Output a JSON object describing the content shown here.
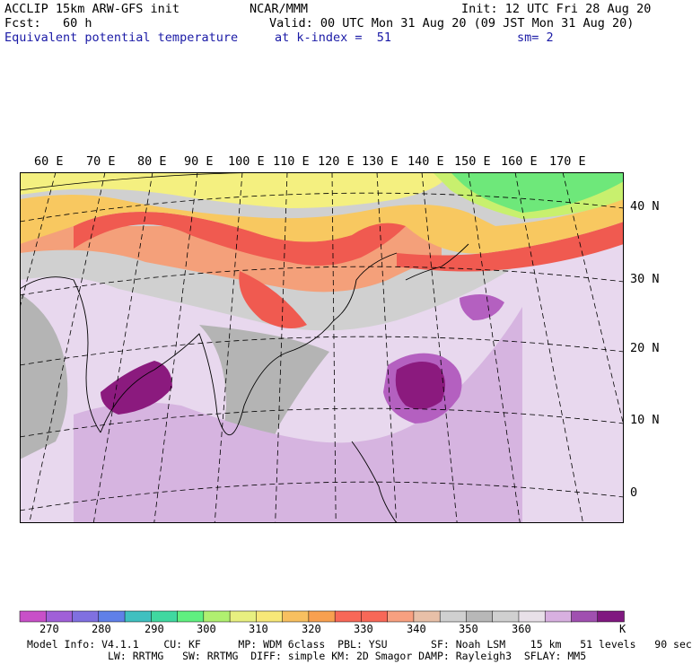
{
  "header": {
    "title_left": "ACCLIP 15km ARW-GFS init",
    "center": "NCAR/MMM",
    "init": "Init: 12 UTC Fri 28 Aug 20",
    "fcst": "Fcst:   60 h",
    "valid": "Valid: 00 UTC Mon 31 Aug 20 (09 JST Mon 31 Aug 20)",
    "field": "Equivalent potential temperature",
    "level": "at k-index =  51",
    "smooth": "sm= 2"
  },
  "map": {
    "lon_labels": [
      "60 E",
      "70 E",
      "80 E",
      "90 E",
      "100 E",
      "110 E",
      "120 E",
      "130 E",
      "140 E",
      "150 E",
      "160 E",
      "170 E"
    ],
    "lat_labels": [
      "40 N",
      "30 N",
      "20 N",
      "10 N",
      "0"
    ],
    "colors": {
      "magenta": "#8b1a7e",
      "violet": "#b460c0",
      "lilac": "#d6b4e0",
      "pale_lilac": "#e8d8ee",
      "gray_light": "#d0d0d0",
      "gray_dark": "#b4b4b4",
      "salmon": "#f4a07a",
      "red": "#f05a50",
      "orange": "#f8c860",
      "yellow": "#f4f080",
      "yellow_green": "#c8f06e",
      "green": "#6ee87a"
    }
  },
  "colorbar": {
    "ticks": [
      "270",
      "280",
      "290",
      "300",
      "310",
      "320",
      "330",
      "340",
      "350",
      "360",
      "K"
    ],
    "colors": [
      "#c850c8",
      "#a060d8",
      "#8070e0",
      "#6080e8",
      "#40c0c0",
      "#40d8a0",
      "#60f080",
      "#b0f070",
      "#e8f080",
      "#f8e878",
      "#f8c060",
      "#f8a050",
      "#f86858",
      "#f86858",
      "#f8a080",
      "#e8c0a8",
      "#d0d0d0",
      "#b8b8b8",
      "#d0d0d0",
      "#e8e0e8",
      "#d8b0e0",
      "#a050b0",
      "#801880"
    ]
  },
  "footer": {
    "line1": "Model Info: V4.1.1    CU: KF      MP: WDM 6class  PBL: YSU       SF: Noah LSM    15 km   51 levels   90 sec",
    "line2": "             LW: RRTMG   SW: RRTMG  DIFF: simple KM: 2D Smagor DAMP: Rayleigh3  SFLAY: MM5"
  }
}
